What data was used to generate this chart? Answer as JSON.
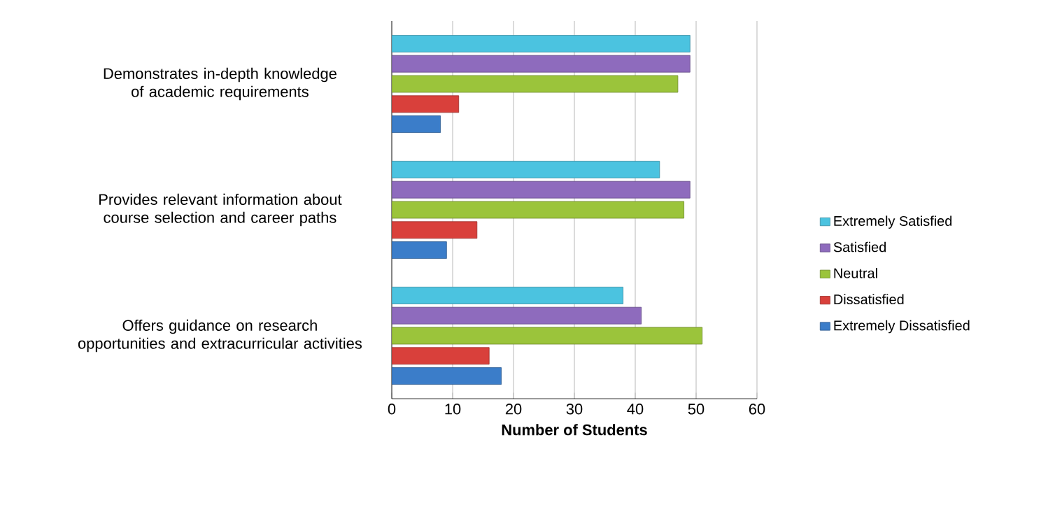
{
  "chart_data": {
    "type": "bar",
    "orientation": "horizontal",
    "xlabel": "Number of Students",
    "categories": [
      "Demonstrates in-depth knowledge of academic requirements",
      "Provides relevant information about course selection and career paths",
      "Offers guidance on research opportunities and extracurricular activities"
    ],
    "series": [
      {
        "name": "Extremely Satisfied",
        "color": "#4bc3e0",
        "values": [
          49,
          44,
          38
        ]
      },
      {
        "name": "Satisfied",
        "color": "#8e6bbd",
        "values": [
          49,
          49,
          41
        ]
      },
      {
        "name": "Neutral",
        "color": "#9bc43b",
        "values": [
          47,
          48,
          51
        ]
      },
      {
        "name": "Dissatisfied",
        "color": "#d9403b",
        "values": [
          11,
          14,
          16
        ]
      },
      {
        "name": "Extremely Dissatisfied",
        "color": "#3b7dc9",
        "values": [
          8,
          9,
          18
        ]
      }
    ],
    "xlim": [
      0,
      60
    ],
    "xticks": [
      0,
      10,
      20,
      30,
      40,
      50,
      60
    ],
    "grid": "x",
    "legend": "right"
  }
}
